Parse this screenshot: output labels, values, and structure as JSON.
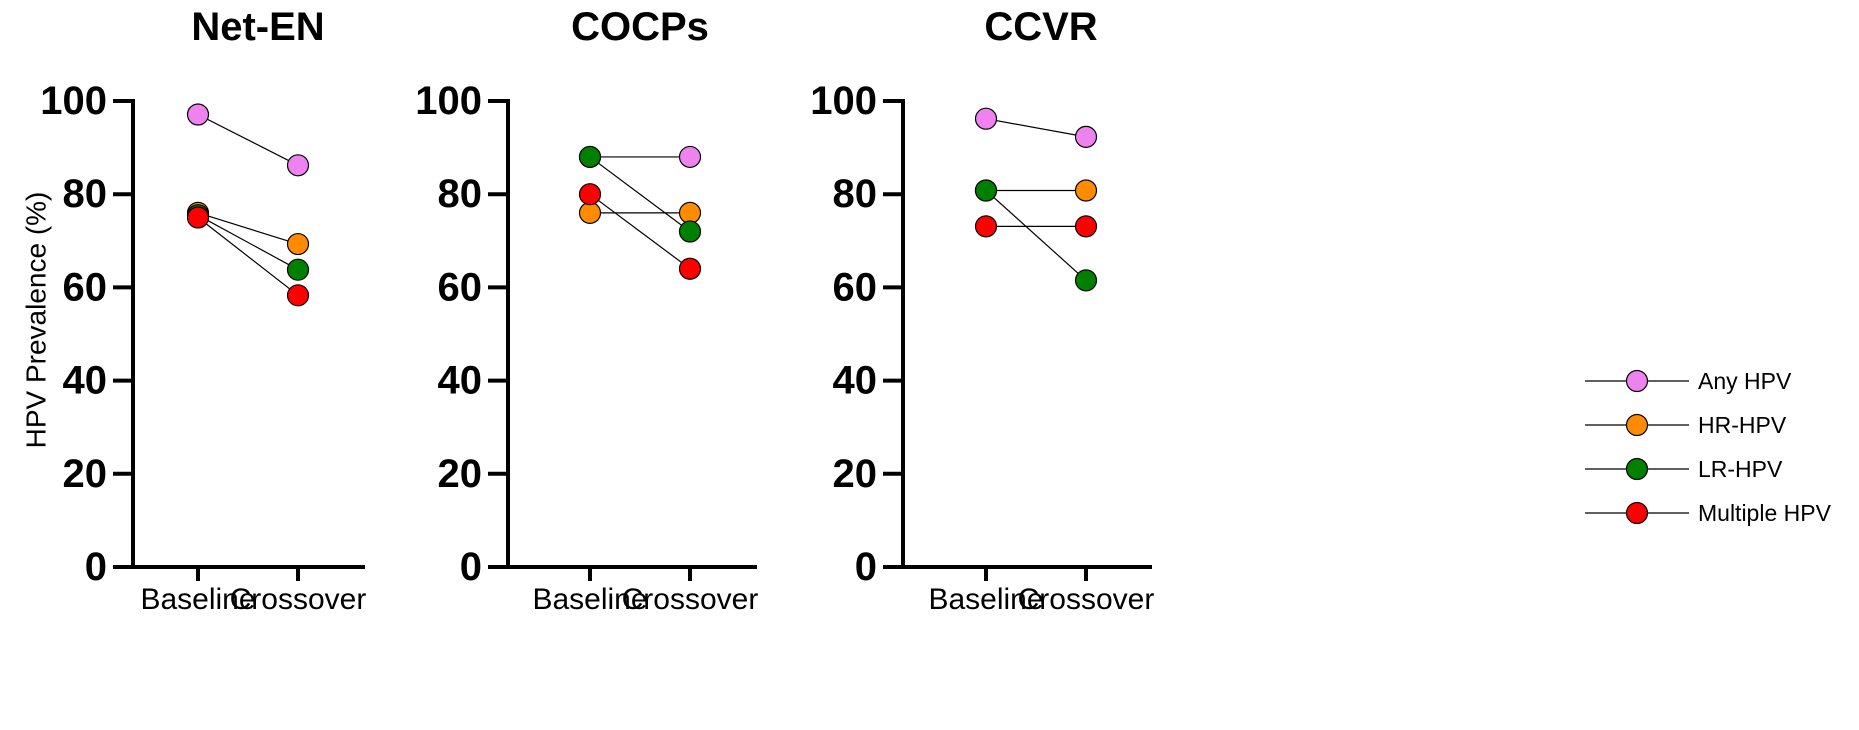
{
  "chart_data": {
    "type": "line",
    "ylabel": "HPV Prevalence (%)",
    "ylim": [
      0,
      100
    ],
    "yticks": [
      "0",
      "20",
      "40",
      "60",
      "80",
      "100"
    ],
    "categories": [
      "Baseline",
      "Crossover"
    ],
    "grid": false,
    "legend_position": "right",
    "series_styles": [
      {
        "name": "Any HPV",
        "color": "#ee82ee"
      },
      {
        "name": "HR-HPV",
        "color": "#ff8c00"
      },
      {
        "name": "LR-HPV",
        "color": "#008000"
      },
      {
        "name": "Multiple HPV",
        "color": "#ff0000"
      }
    ],
    "panels": [
      {
        "title": "Net-EN",
        "series": [
          {
            "name": "Any HPV",
            "values": [
              97.1,
              86.2
            ]
          },
          {
            "name": "HR-HPV",
            "values": [
              76.0,
              69.3
            ]
          },
          {
            "name": "LR-HPV",
            "values": [
              75.5,
              63.8
            ]
          },
          {
            "name": "Multiple HPV",
            "values": [
              75.0,
              58.3
            ]
          }
        ]
      },
      {
        "title": "COCPs",
        "series": [
          {
            "name": "Any HPV",
            "values": [
              88.0,
              88.0
            ]
          },
          {
            "name": "HR-HPV",
            "values": [
              76.0,
              76.0
            ]
          },
          {
            "name": "LR-HPV",
            "values": [
              88.0,
              72.0
            ]
          },
          {
            "name": "Multiple HPV",
            "values": [
              80.0,
              64.0
            ]
          }
        ]
      },
      {
        "title": "CCVR",
        "series": [
          {
            "name": "Any HPV",
            "values": [
              96.2,
              92.3
            ]
          },
          {
            "name": "HR-HPV",
            "values": [
              80.8,
              80.8
            ]
          },
          {
            "name": "LR-HPV",
            "values": [
              80.8,
              61.5
            ]
          },
          {
            "name": "Multiple HPV",
            "values": [
              73.1,
              73.1
            ]
          }
        ]
      }
    ]
  }
}
